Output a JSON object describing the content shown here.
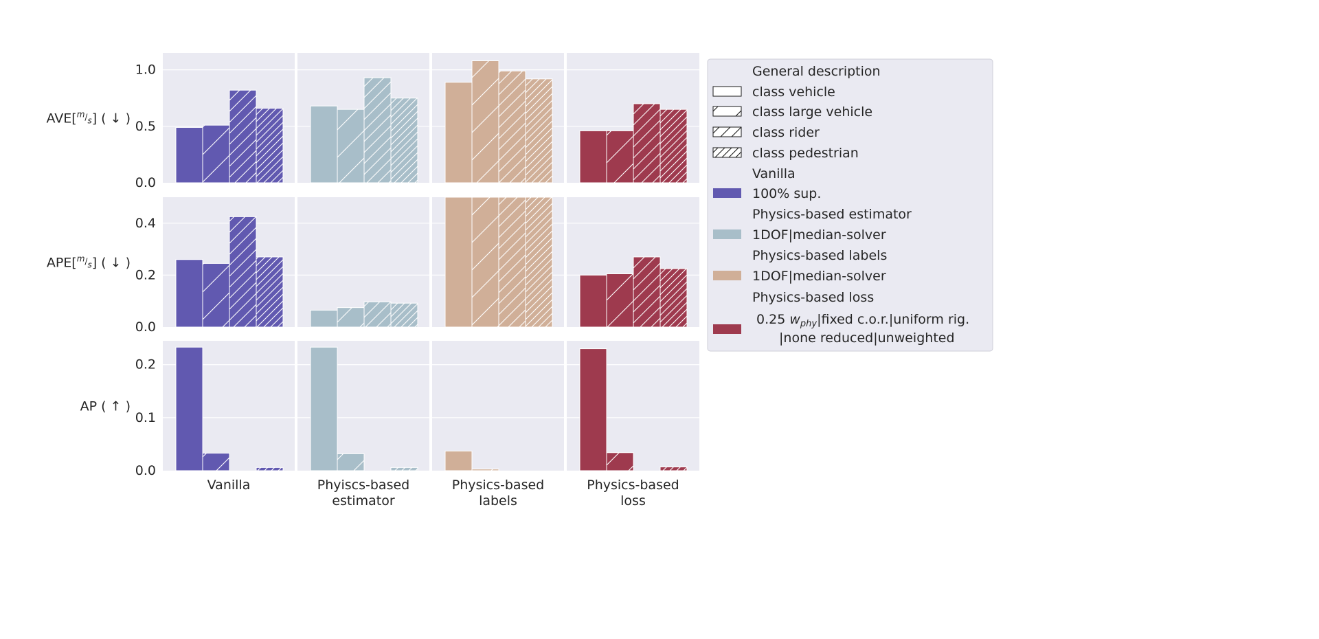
{
  "chart_data": {
    "type": "bar",
    "groups": [
      "Vanilla",
      "Phyiscs-based estimator",
      "Physics-based labels",
      "Physics-based loss"
    ],
    "group_tick_labels": [
      [
        "Vanilla"
      ],
      [
        "Phyiscs-based",
        "estimator"
      ],
      [
        "Physics-based",
        "labels"
      ],
      [
        "Physics-based",
        "loss"
      ]
    ],
    "classes": [
      "class vehicle",
      "class large vehicle",
      "class rider",
      "class pedestrian"
    ],
    "group_colors": [
      "#6159b0",
      "#a8bec9",
      "#d0af98",
      "#9e3a4e"
    ],
    "grid": true,
    "legend_placement": "right",
    "rows": [
      {
        "ylabel_main": "AVE[",
        "ylabel_frac_num": "m",
        "ylabel_frac_den": "s",
        "ylabel_suffix": "] ( ↓ )",
        "ylim": [
          0,
          1.15
        ],
        "yticks": [
          0.0,
          0.5,
          1.0
        ],
        "ytick_labels": [
          "0.0",
          "0.5",
          "1.0"
        ],
        "values": [
          [
            0.49,
            0.51,
            0.82,
            0.66
          ],
          [
            0.68,
            0.65,
            0.93,
            0.75
          ],
          [
            0.89,
            1.08,
            0.99,
            0.92
          ],
          [
            0.46,
            0.46,
            0.7,
            0.65
          ]
        ]
      },
      {
        "ylabel_main": "APE[",
        "ylabel_frac_num": "m",
        "ylabel_frac_den": "s",
        "ylabel_suffix": "] ( ↓ )",
        "ylim": [
          0,
          0.5
        ],
        "yticks": [
          0.0,
          0.2,
          0.4
        ],
        "ytick_labels": [
          "0.0",
          "0.2",
          "0.4"
        ],
        "values": [
          [
            0.26,
            0.245,
            0.425,
            0.27
          ],
          [
            0.065,
            0.075,
            0.097,
            0.092
          ],
          [
            0.5,
            0.5,
            0.5,
            0.5
          ],
          [
            0.2,
            0.205,
            0.27,
            0.225
          ]
        ]
      },
      {
        "ylabel_main": "AP ( ↑ )",
        "ylabel_frac_num": "",
        "ylabel_frac_den": "",
        "ylabel_suffix": "",
        "ylim": [
          0,
          0.245
        ],
        "yticks": [
          0.0,
          0.1,
          0.2
        ],
        "ytick_labels": [
          "0.0",
          "0.1",
          "0.2"
        ],
        "values": [
          [
            0.233,
            0.033,
            0.0,
            0.006
          ],
          [
            0.233,
            0.032,
            0.0,
            0.006
          ],
          [
            0.037,
            0.003,
            0.0,
            0.0
          ],
          [
            0.23,
            0.034,
            0.0,
            0.007
          ]
        ]
      }
    ],
    "legend": [
      {
        "kind": "header",
        "text": "General description"
      },
      {
        "kind": "hatch",
        "hatch": 0,
        "text": "class vehicle"
      },
      {
        "kind": "hatch",
        "hatch": 1,
        "text": "class large vehicle"
      },
      {
        "kind": "hatch",
        "hatch": 2,
        "text": "class rider"
      },
      {
        "kind": "hatch",
        "hatch": 3,
        "text": "class pedestrian"
      },
      {
        "kind": "header",
        "text": "Vanilla"
      },
      {
        "kind": "color",
        "color": "#6159b0",
        "text": "100% sup."
      },
      {
        "kind": "header",
        "text": "Physics-based estimator"
      },
      {
        "kind": "color",
        "color": "#a8bec9",
        "text": "1DOF|median-solver"
      },
      {
        "kind": "header",
        "text": "Physics-based labels"
      },
      {
        "kind": "color",
        "color": "#d0af98",
        "text": "1DOF|median-solver"
      },
      {
        "kind": "header",
        "text": "Physics-based loss"
      },
      {
        "kind": "color_multi",
        "color": "#9e3a4e",
        "lines": [
          "0.25 w_phy|fixed c.o.r.|uniform rig.",
          "|none reduced|unweighted"
        ],
        "line1_prefix": "0.25 ",
        "line1_w": "w",
        "line1_sub": "phy",
        "line1_rest": "|fixed c.o.r.|uniform rig.",
        "line2": "|none reduced|unweighted"
      }
    ]
  }
}
